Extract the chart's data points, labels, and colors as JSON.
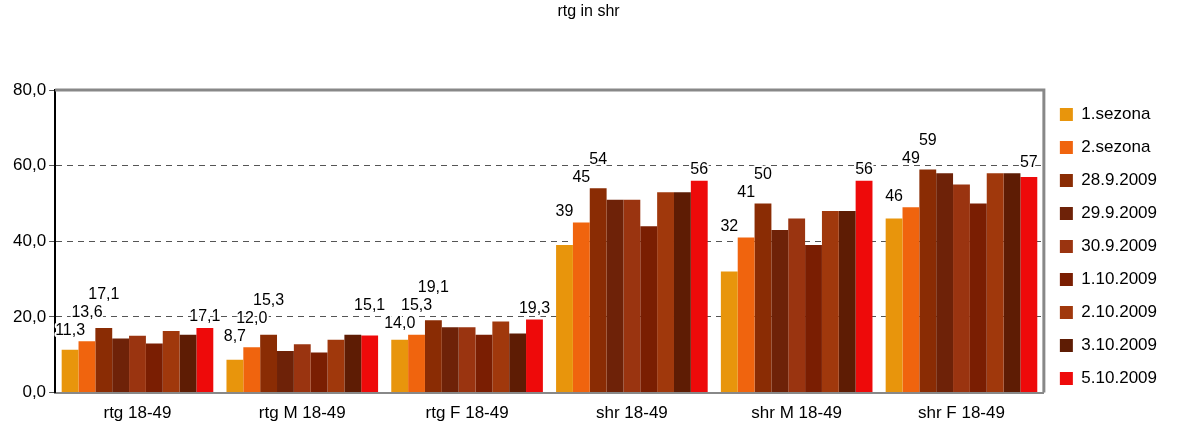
{
  "chart_data": {
    "type": "bar",
    "title": "rtg in shr",
    "categories": [
      "rtg 18-49",
      "rtg M 18-49",
      "rtg F 18-49",
      "shr 18-49",
      "shr M 18-49",
      "shr F 18-49"
    ],
    "series": [
      {
        "name": "1.sezona",
        "color": "#e8950c",
        "values": [
          11.3,
          8.7,
          14.0,
          39,
          32,
          46
        ],
        "value_labels": [
          "11,3",
          "8,7",
          "14,0",
          "39",
          "32",
          "46"
        ]
      },
      {
        "name": "2.sezona",
        "color": "#f0640e",
        "values": [
          13.6,
          12.0,
          15.3,
          45,
          41,
          49
        ],
        "value_labels": [
          "13,6",
          "12,0",
          "15,3",
          "45",
          "41",
          "49"
        ]
      },
      {
        "name": "28.9.2009",
        "color": "#8a2c04",
        "values": [
          17.1,
          15.3,
          19.1,
          54,
          50,
          59
        ],
        "value_labels": [
          "17,1",
          "15,3",
          "19,1",
          "54",
          "50",
          "59"
        ]
      },
      {
        "name": "29.9.2009",
        "color": "#6e2208",
        "values": [
          14.3,
          11.0,
          17.3,
          51,
          43,
          58
        ]
      },
      {
        "name": "30.9.2009",
        "color": "#9a3410",
        "values": [
          15.0,
          12.8,
          17.3,
          51,
          46,
          55
        ]
      },
      {
        "name": "1.10.2009",
        "color": "#7a1e02",
        "values": [
          13.0,
          10.6,
          15.3,
          44,
          39,
          50
        ]
      },
      {
        "name": "2.10.2009",
        "color": "#a0380c",
        "values": [
          16.3,
          14.0,
          18.8,
          53,
          48,
          58
        ]
      },
      {
        "name": "3.10.2009",
        "color": "#5e1c04",
        "values": [
          15.3,
          15.3,
          15.6,
          53,
          48,
          58
        ]
      },
      {
        "name": "5.10.2009",
        "color": "#ee0a0a",
        "values": [
          17.1,
          15.1,
          19.3,
          56,
          56,
          57
        ],
        "value_labels": [
          "17,1",
          "15,1",
          "19,3",
          "56",
          "56",
          "57"
        ]
      }
    ],
    "ylim": [
      0,
      80
    ],
    "yticks": [
      {
        "value": 0,
        "label": "0,0"
      },
      {
        "value": 20,
        "label": "20,0"
      },
      {
        "value": 40,
        "label": "40,0"
      },
      {
        "value": 60,
        "label": "60,0"
      },
      {
        "value": 80,
        "label": "80,0"
      }
    ],
    "grid": "y",
    "legend": "right"
  }
}
